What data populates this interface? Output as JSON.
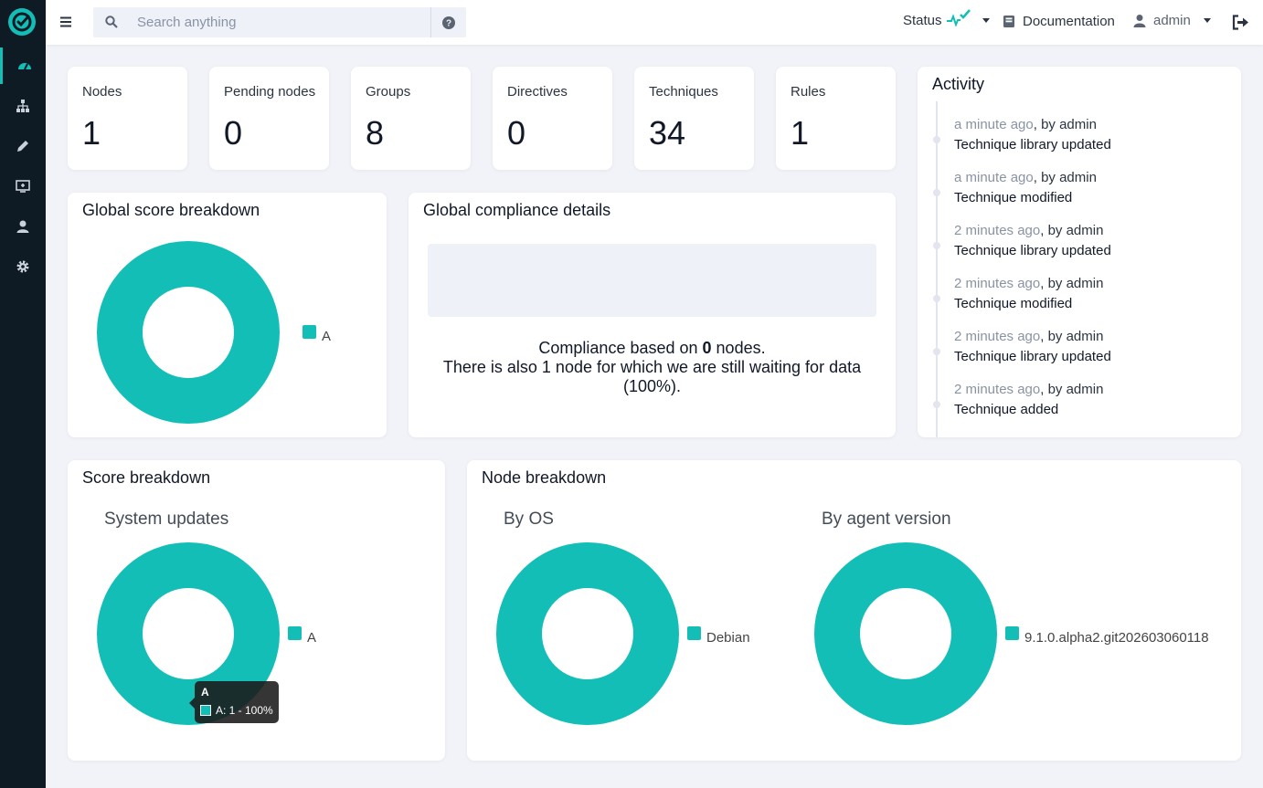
{
  "brand": {
    "accent": "#13beb7",
    "sidebar_bg": "#0e1a24"
  },
  "sidebar": {
    "items": [
      {
        "icon": "dashboard-icon",
        "active": true
      },
      {
        "icon": "sitemap-icon",
        "active": false
      },
      {
        "icon": "pencil-icon",
        "active": false
      },
      {
        "icon": "monitor-icon",
        "active": false
      },
      {
        "icon": "user-icon",
        "active": false
      },
      {
        "icon": "gear-icon",
        "active": false
      }
    ]
  },
  "topbar": {
    "search_placeholder": "Search anything",
    "status_label": "Status",
    "documentation_label": "Documentation",
    "user_label": "admin"
  },
  "stats": [
    {
      "label": "Nodes",
      "value": "1"
    },
    {
      "label": "Pending nodes",
      "value": "0"
    },
    {
      "label": "Groups",
      "value": "8"
    },
    {
      "label": "Directives",
      "value": "0"
    },
    {
      "label": "Techniques",
      "value": "34"
    },
    {
      "label": "Rules",
      "value": "1"
    }
  ],
  "global_score": {
    "title": "Global score breakdown",
    "legend": [
      "A"
    ]
  },
  "global_compliance": {
    "title": "Global compliance details",
    "line1_pre": "Compliance based on ",
    "line1_num": "0",
    "line1_post": " nodes.",
    "line2": "There is also 1 node for which we are still waiting for data (100%)."
  },
  "activity": {
    "title": "Activity",
    "items": [
      {
        "time": "a minute ago",
        "by": ", by admin",
        "msg": "Technique library updated"
      },
      {
        "time": "a minute ago",
        "by": ", by admin",
        "msg": "Technique modified"
      },
      {
        "time": "2 minutes ago",
        "by": ", by admin",
        "msg": "Technique library updated"
      },
      {
        "time": "2 minutes ago",
        "by": ", by admin",
        "msg": "Technique modified"
      },
      {
        "time": "2 minutes ago",
        "by": ", by admin",
        "msg": "Technique library updated"
      },
      {
        "time": "2 minutes ago",
        "by": ", by admin",
        "msg": "Technique added"
      }
    ]
  },
  "score_breakdown": {
    "title": "Score breakdown",
    "subtitle": "System updates",
    "legend": [
      "A"
    ],
    "tooltip_title": "A",
    "tooltip_value": "A: 1 - 100%"
  },
  "node_breakdown": {
    "title": "Node breakdown",
    "by_os_title": "By OS",
    "by_os_legend": [
      "Debian"
    ],
    "by_agent_title": "By agent version",
    "by_agent_legend": [
      "9.1.0.alpha2.git202603060118"
    ]
  },
  "chart_data": [
    {
      "type": "pie",
      "title": "Global score breakdown",
      "categories": [
        "A"
      ],
      "values": [
        1
      ]
    },
    {
      "type": "pie",
      "title": "System updates",
      "categories": [
        "A"
      ],
      "values": [
        1
      ]
    },
    {
      "type": "pie",
      "title": "By OS",
      "categories": [
        "Debian"
      ],
      "values": [
        1
      ]
    },
    {
      "type": "pie",
      "title": "By agent version",
      "categories": [
        "9.1.0.alpha2.git202603060118"
      ],
      "values": [
        1
      ]
    }
  ]
}
